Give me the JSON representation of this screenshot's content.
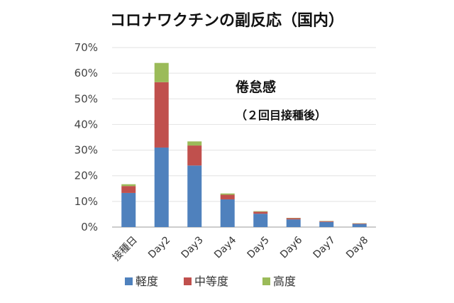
{
  "chart_data": {
    "type": "bar",
    "stacked": true,
    "title": "コロナワクチンの副反応（国内）",
    "annotation_title": "倦怠感",
    "annotation_subtitle": "（２回目接種後）",
    "categories": [
      "接種日",
      "Day2",
      "Day3",
      "Day4",
      "Day5",
      "Day6",
      "Day7",
      "Day8"
    ],
    "series": [
      {
        "name": "軽度",
        "color": "#4f81bd",
        "values": [
          13.3,
          31.0,
          24.0,
          10.8,
          5.2,
          3.0,
          2.0,
          1.2
        ]
      },
      {
        "name": "中等度",
        "color": "#c0504d",
        "values": [
          2.7,
          25.5,
          7.8,
          1.8,
          0.8,
          0.5,
          0.3,
          0.2
        ]
      },
      {
        "name": "高度",
        "color": "#9bbb59",
        "values": [
          0.7,
          7.5,
          1.6,
          0.5,
          0.2,
          0.1,
          0.1,
          0.1
        ]
      }
    ],
    "yticks": [
      "0%",
      "10%",
      "20%",
      "30%",
      "40%",
      "50%",
      "60%",
      "70%"
    ],
    "ylim": [
      0,
      70
    ],
    "grid": "horizontal",
    "legend_position": "bottom"
  }
}
